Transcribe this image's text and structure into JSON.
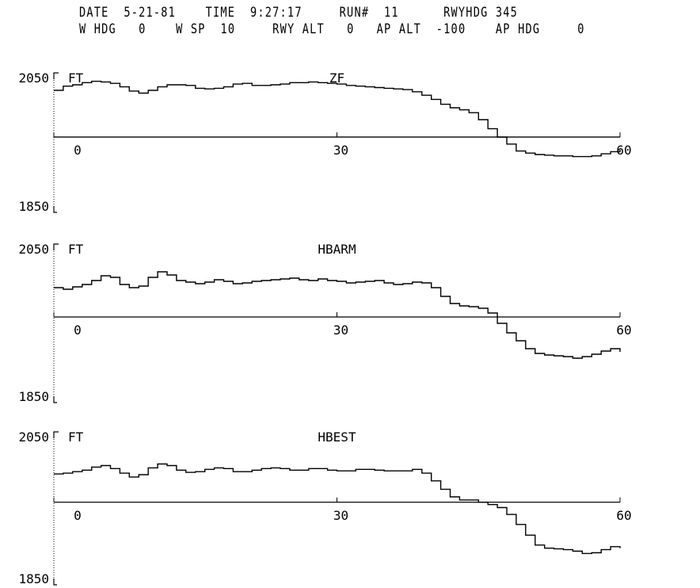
{
  "header": {
    "date_label": "DATE",
    "date_value": "5-21-81",
    "time_label": "TIME",
    "time_value": "9:27:17",
    "run_label": "RUN#",
    "run_value": "11",
    "rwyhdg_label": "RWYHDG",
    "rwyhdg_value": "345",
    "whdg_label": "W HDG",
    "whdg_value": "0",
    "wsp_label": "W SP",
    "wsp_value": "10",
    "rwyalt_label": "RWY ALT",
    "rwyalt_value": "0",
    "apalt_label": "AP ALT",
    "apalt_value": "-100",
    "aphdg_label": "AP HDG",
    "aphdg_value": "0"
  },
  "colors": {
    "ink": "#000000",
    "background": "#ffffff"
  },
  "chart_data": [
    {
      "type": "line",
      "title": "ZF",
      "ylabel": "FT",
      "ylim": [
        1850,
        2050
      ],
      "xlim": [
        0,
        60
      ],
      "yticks": [
        "2050",
        "1850"
      ],
      "xticks": [
        "0",
        "30",
        "60"
      ],
      "zero_line": 1958,
      "x": [
        0,
        1,
        2,
        3,
        4,
        5,
        6,
        7,
        8,
        9,
        10,
        11,
        12,
        13,
        14,
        15,
        16,
        17,
        18,
        19,
        20,
        21,
        22,
        23,
        24,
        25,
        26,
        27,
        28,
        29,
        30,
        31,
        32,
        33,
        34,
        35,
        36,
        37,
        38,
        39,
        40,
        41,
        42,
        43,
        44,
        45,
        46,
        47,
        48,
        49,
        50,
        51,
        52,
        53,
        54,
        55,
        56,
        57,
        58,
        59,
        60
      ],
      "series": [
        {
          "values": [
            2025,
            2031,
            2033,
            2036,
            2038,
            2037,
            2035,
            2030,
            2024,
            2021,
            2025,
            2030,
            2033,
            2033,
            2032,
            2028,
            2027,
            2028,
            2030,
            2034,
            2035,
            2032,
            2032,
            2033,
            2034,
            2036,
            2036,
            2037,
            2036,
            2035,
            2034,
            2032,
            2031,
            2030,
            2029,
            2028,
            2027,
            2026,
            2023,
            2018,
            2012,
            2005,
            2000,
            1997,
            1993,
            1983,
            1970,
            1958,
            1948,
            1938,
            1935,
            1933,
            1932,
            1931,
            1931,
            1930,
            1930,
            1931,
            1934,
            1937,
            1940
          ]
        }
      ]
    },
    {
      "type": "line",
      "title": "HBARM",
      "ylabel": "FT",
      "ylim": [
        1850,
        2050
      ],
      "xlim": [
        0,
        60
      ],
      "yticks": [
        "2050",
        "1850"
      ],
      "xticks": [
        "0",
        "30",
        "60"
      ],
      "zero_line": 1958,
      "x": [
        0,
        1,
        2,
        3,
        4,
        5,
        6,
        7,
        8,
        9,
        10,
        11,
        12,
        13,
        14,
        15,
        16,
        17,
        18,
        19,
        20,
        21,
        22,
        23,
        24,
        25,
        26,
        27,
        28,
        29,
        30,
        31,
        32,
        33,
        34,
        35,
        36,
        37,
        38,
        39,
        40,
        41,
        42,
        43,
        44,
        45,
        46,
        47,
        48,
        49,
        50,
        51,
        52,
        53,
        54,
        55,
        56,
        57,
        58,
        59,
        60
      ],
      "series": [
        {
          "values": [
            1995,
            1993,
            1996,
            1999,
            2004,
            2010,
            2008,
            1999,
            1995,
            1997,
            2008,
            2015,
            2011,
            2004,
            2002,
            2000,
            2002,
            2005,
            2003,
            2000,
            2001,
            2003,
            2004,
            2005,
            2006,
            2007,
            2005,
            2004,
            2006,
            2004,
            2003,
            2001,
            2002,
            2003,
            2004,
            2001,
            1999,
            2000,
            2002,
            2001,
            1995,
            1984,
            1975,
            1972,
            1971,
            1969,
            1963,
            1950,
            1938,
            1928,
            1918,
            1912,
            1910,
            1909,
            1908,
            1906,
            1908,
            1911,
            1915,
            1918,
            1914
          ]
        }
      ]
    },
    {
      "type": "line",
      "title": "HBEST",
      "ylabel": "FT",
      "ylim": [
        1850,
        2050
      ],
      "xlim": [
        0,
        60
      ],
      "yticks": [
        "2050",
        "1850"
      ],
      "xticks": [
        "0",
        "30",
        "60"
      ],
      "zero_line": 1958,
      "x": [
        0,
        1,
        2,
        3,
        4,
        5,
        6,
        7,
        8,
        9,
        10,
        11,
        12,
        13,
        14,
        15,
        16,
        17,
        18,
        19,
        20,
        21,
        22,
        23,
        24,
        25,
        26,
        27,
        28,
        29,
        30,
        31,
        32,
        33,
        34,
        35,
        36,
        37,
        38,
        39,
        40,
        41,
        42,
        43,
        44,
        45,
        46,
        47,
        48,
        49,
        50,
        51,
        52,
        53,
        54,
        55,
        56,
        57,
        58,
        59,
        60
      ],
      "series": [
        {
          "values": [
            1995,
            1996,
            1998,
            2000,
            2004,
            2006,
            2002,
            1996,
            1991,
            1994,
            2003,
            2008,
            2006,
            2000,
            1997,
            1998,
            2001,
            2003,
            2002,
            1998,
            1998,
            2000,
            2002,
            2003,
            2002,
            2000,
            2000,
            2002,
            2002,
            2000,
            1999,
            1999,
            2001,
            2001,
            2000,
            1999,
            1999,
            1999,
            2001,
            1996,
            1986,
            1975,
            1965,
            1961,
            1961,
            1958,
            1955,
            1951,
            1942,
            1929,
            1915,
            1902,
            1898,
            1897,
            1896,
            1894,
            1891,
            1892,
            1896,
            1900,
            1898
          ]
        }
      ]
    }
  ]
}
